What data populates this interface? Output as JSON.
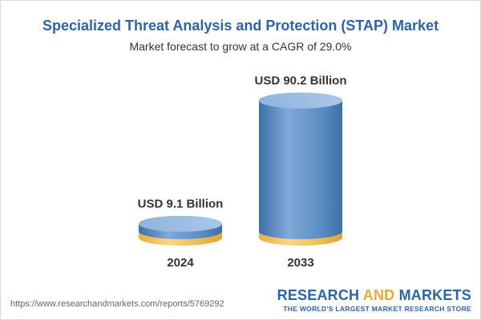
{
  "header": {
    "title": "Specialized Threat Analysis and Protection (STAP) Market",
    "subtitle": "Market forecast to grow at a CAGR of 29.0%"
  },
  "footer": {
    "source_url": "https://www.researchandmarkets.com/reports/5769292",
    "brand_part1": "RESEARCH ",
    "brand_part2": "AND",
    "brand_part3": " MARKETS",
    "brand_tagline": "THE WORLD'S LARGEST MARKET RESEARCH STORE"
  },
  "colors": {
    "title": "#2e63a4",
    "base_cylinder": "#f3c35c",
    "forecast_cylinder": "#5b8dc4",
    "brand_accent": "#e8a73b"
  },
  "chart_data": {
    "type": "bar",
    "style": "3d-cylinder",
    "categories": [
      "2024",
      "2033"
    ],
    "values": [
      9.1,
      90.2
    ],
    "unit": "USD Billion",
    "data_labels": [
      "USD 9.1 Billion",
      "USD 90.2 Billion"
    ],
    "title": "Specialized Threat Analysis and Protection (STAP) Market",
    "subtitle": "Market forecast to grow at a CAGR of 29.0%",
    "cagr": "29.0%",
    "grid": false,
    "legend": "none"
  }
}
